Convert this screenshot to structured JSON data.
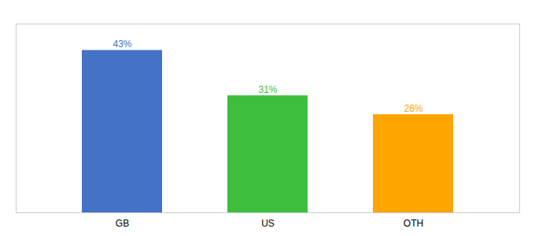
{
  "chart_data": {
    "type": "bar",
    "categories": [
      "GB",
      "US",
      "OTH"
    ],
    "values": [
      43,
      31,
      26
    ],
    "value_labels": [
      "43%",
      "31%",
      "26%"
    ],
    "colors": [
      "#4472C4",
      "#3DBE3D",
      "#FFA500"
    ],
    "ylim": [
      0,
      50
    ],
    "grid": false,
    "data_labels": true,
    "tick_labels": "x"
  }
}
